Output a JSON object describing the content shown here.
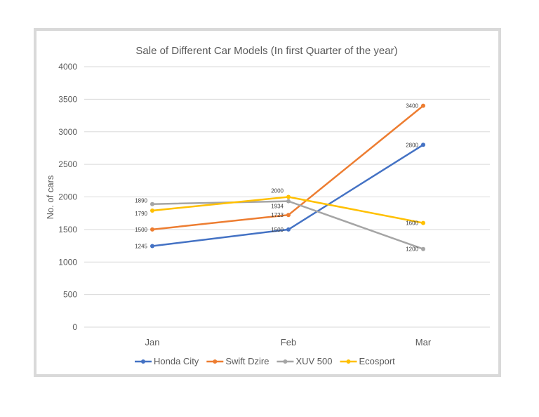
{
  "chart_data": {
    "type": "line",
    "title": "Sale of Different Car Models (In first Quarter of the year)",
    "xlabel": "",
    "ylabel": "No. of cars",
    "categories": [
      "Jan",
      "Feb",
      "Mar"
    ],
    "ylim": [
      0,
      4000
    ],
    "yticks": [
      0,
      500,
      1000,
      1500,
      2000,
      2500,
      3000,
      3500,
      4000
    ],
    "grid": true,
    "legend": "bottom",
    "series": [
      {
        "name": "Honda City",
        "color": "#4472c4",
        "values": [
          1245,
          1500,
          2800
        ]
      },
      {
        "name": "Swift Dzire",
        "color": "#ed7d31",
        "values": [
          1500,
          1723,
          3400
        ]
      },
      {
        "name": "XUV 500",
        "color": "#a5a5a5",
        "values": [
          1890,
          1934,
          1200
        ]
      },
      {
        "name": "Ecosport",
        "color": "#ffc000",
        "values": [
          1790,
          2000,
          1600
        ]
      }
    ]
  }
}
